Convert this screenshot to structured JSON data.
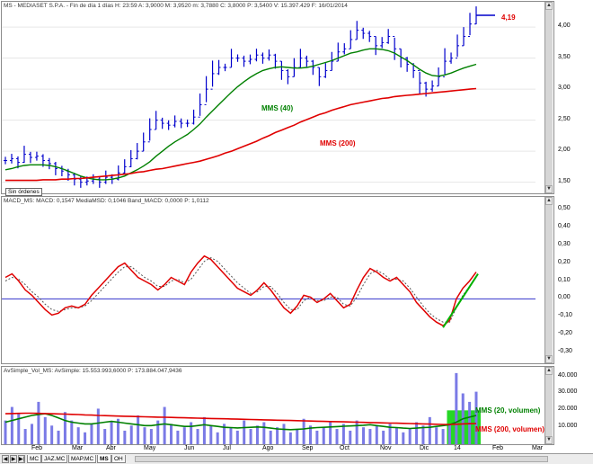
{
  "price_panel": {
    "header": "MS - MEDIASET S.P.A. - Fin de día 1 días H: 23:59 A: 3,9000 M: 3,9520 m: 3,7880 C: 3,8000 P: 3,5400 V: 15.397.429 F: 16/01/2014",
    "last_value_label": "4,19",
    "mms40_label": "MMS (40)",
    "mms200_label": "MMS (200)",
    "orders_button": "Sin órdenes",
    "y_ticks": [
      "4,00",
      "3,50",
      "3,00",
      "2,50",
      "2,00",
      "1,50"
    ],
    "colors": {
      "price": "#0000cc",
      "mms40": "#008000",
      "mms200": "#e00000"
    }
  },
  "macd_panel": {
    "header": "MACD_MS: MACD: 0,1547 MediaMSD: 0,1046 Band_MACD: 0,0000 P: 1,0112",
    "y_ticks": [
      "0,50",
      "0,40",
      "0,30",
      "0,20",
      "0,10",
      "0,00",
      "-0,10",
      "-0,20",
      "-0,30"
    ]
  },
  "volume_panel": {
    "header": "AvSimple_Vol_MS: AvSimple: 15.553.993,6000 P: 173.884.047,9436",
    "mms20_label": "MMS (20, volumen)",
    "mms200_label": "MMS (200, volumen)",
    "y_ticks": [
      "40.000",
      "30.000",
      "20.000",
      "10.000"
    ]
  },
  "x_axis": {
    "months": [
      "Feb",
      "Mar",
      "Abr",
      "May",
      "Jun",
      "Jul",
      "Ago",
      "Sep",
      "Oct",
      "Nov",
      "Dic",
      "14",
      "Feb",
      "Mar"
    ]
  },
  "tabs": [
    "MC",
    "JAZ.MC",
    "MAP.MC",
    "MS",
    "OH"
  ],
  "chart_data": [
    {
      "type": "line",
      "title": "MS - MEDIASET S.P.A.",
      "ylim": [
        1.35,
        4.35
      ],
      "series": [
        {
          "name": "price",
          "values": [
            1.85,
            1.88,
            1.82,
            1.95,
            1.9,
            1.92,
            1.85,
            1.8,
            1.72,
            1.68,
            1.62,
            1.55,
            1.5,
            1.52,
            1.55,
            1.5,
            1.58,
            1.55,
            1.65,
            1.75,
            1.88,
            2.0,
            2.15,
            2.35,
            2.5,
            2.45,
            2.42,
            2.48,
            2.45,
            2.45,
            2.55,
            2.75,
            3.0,
            3.25,
            3.35,
            3.35,
            3.5,
            3.5,
            3.45,
            3.48,
            3.55,
            3.5,
            3.55,
            3.45,
            3.3,
            3.2,
            3.35,
            3.5,
            3.45,
            3.35,
            3.2,
            3.3,
            3.45,
            3.6,
            3.65,
            3.8,
            3.95,
            3.9,
            3.85,
            3.7,
            3.75,
            3.85,
            3.65,
            3.5,
            3.4,
            3.3,
            3.1,
            3.0,
            3.05,
            3.2,
            3.45,
            3.5,
            3.7,
            3.85,
            4.05,
            4.19
          ]
        },
        {
          "name": "MMS (40)",
          "values": [
            1.7,
            1.72,
            1.75,
            1.77,
            1.78,
            1.78,
            1.78,
            1.77,
            1.75,
            1.72,
            1.68,
            1.64,
            1.6,
            1.57,
            1.55,
            1.54,
            1.54,
            1.55,
            1.57,
            1.6,
            1.65,
            1.7,
            1.76,
            1.83,
            1.92,
            2.0,
            2.08,
            2.15,
            2.21,
            2.27,
            2.35,
            2.44,
            2.55,
            2.65,
            2.75,
            2.85,
            2.95,
            3.04,
            3.12,
            3.19,
            3.25,
            3.3,
            3.33,
            3.35,
            3.36,
            3.35,
            3.34,
            3.34,
            3.35,
            3.37,
            3.4,
            3.43,
            3.46,
            3.5,
            3.54,
            3.58,
            3.6,
            3.63,
            3.65,
            3.65,
            3.64,
            3.62,
            3.58,
            3.52,
            3.46,
            3.39,
            3.32,
            3.26,
            3.22,
            3.21,
            3.23,
            3.26,
            3.3,
            3.34,
            3.37,
            3.4
          ]
        },
        {
          "name": "MMS (200)",
          "values": [
            1.53,
            1.53,
            1.53,
            1.53,
            1.53,
            1.53,
            1.54,
            1.54,
            1.54,
            1.55,
            1.55,
            1.56,
            1.56,
            1.57,
            1.58,
            1.59,
            1.6,
            1.61,
            1.62,
            1.63,
            1.64,
            1.66,
            1.67,
            1.69,
            1.71,
            1.72,
            1.74,
            1.76,
            1.78,
            1.8,
            1.82,
            1.84,
            1.87,
            1.9,
            1.93,
            1.97,
            2.0,
            2.04,
            2.08,
            2.12,
            2.16,
            2.21,
            2.25,
            2.3,
            2.34,
            2.38,
            2.42,
            2.47,
            2.51,
            2.55,
            2.59,
            2.62,
            2.66,
            2.69,
            2.72,
            2.75,
            2.77,
            2.79,
            2.81,
            2.83,
            2.85,
            2.86,
            2.88,
            2.89,
            2.9,
            2.91,
            2.92,
            2.93,
            2.94,
            2.95,
            2.96,
            2.97,
            2.98,
            2.99,
            3.0,
            3.01
          ]
        }
      ]
    },
    {
      "type": "line",
      "title": "MACD_MS",
      "ylim": [
        -0.35,
        0.55
      ],
      "series": [
        {
          "name": "MACD",
          "values": [
            0.12,
            0.14,
            0.1,
            0.05,
            0.02,
            -0.02,
            -0.06,
            -0.09,
            -0.08,
            -0.05,
            -0.04,
            -0.05,
            -0.03,
            0.02,
            0.06,
            0.1,
            0.14,
            0.18,
            0.2,
            0.16,
            0.12,
            0.1,
            0.08,
            0.05,
            0.08,
            0.12,
            0.1,
            0.08,
            0.15,
            0.2,
            0.24,
            0.22,
            0.18,
            0.14,
            0.1,
            0.06,
            0.04,
            0.02,
            0.05,
            0.09,
            0.05,
            0.0,
            -0.05,
            -0.08,
            -0.04,
            0.02,
            0.01,
            -0.02,
            0.0,
            0.03,
            -0.01,
            -0.05,
            -0.03,
            0.05,
            0.12,
            0.17,
            0.15,
            0.12,
            0.1,
            0.12,
            0.08,
            0.04,
            -0.02,
            -0.06,
            -0.1,
            -0.13,
            -0.15,
            -0.12,
            0.0,
            0.06,
            0.1,
            0.15
          ]
        },
        {
          "name": "MediaMSD",
          "values": [
            0.1,
            0.12,
            0.11,
            0.08,
            0.04,
            0.01,
            -0.03,
            -0.06,
            -0.07,
            -0.06,
            -0.05,
            -0.05,
            -0.04,
            -0.01,
            0.03,
            0.07,
            0.11,
            0.15,
            0.18,
            0.18,
            0.15,
            0.12,
            0.1,
            0.07,
            0.07,
            0.1,
            0.11,
            0.09,
            0.11,
            0.16,
            0.21,
            0.23,
            0.21,
            0.17,
            0.13,
            0.09,
            0.06,
            0.03,
            0.04,
            0.07,
            0.07,
            0.03,
            -0.02,
            -0.06,
            -0.06,
            -0.01,
            0.01,
            -0.01,
            -0.01,
            0.01,
            0.01,
            -0.03,
            -0.04,
            0.01,
            0.08,
            0.14,
            0.16,
            0.14,
            0.11,
            0.11,
            0.1,
            0.06,
            0.01,
            -0.04,
            -0.08,
            -0.11,
            -0.13,
            -0.13,
            -0.05,
            0.02,
            0.07,
            0.12
          ]
        }
      ]
    },
    {
      "type": "bar",
      "title": "AvSimple_Vol_MS",
      "ylim": [
        0,
        43000
      ],
      "series": [
        {
          "name": "volumen",
          "values": [
            14000,
            22000,
            18000,
            9000,
            12000,
            25000,
            16000,
            11000,
            8000,
            19000,
            14000,
            10000,
            7000,
            12000,
            21000,
            9000,
            13000,
            15000,
            8000,
            11000,
            17000,
            10000,
            9000,
            14000,
            22000,
            12000,
            8000,
            10000,
            13000,
            9000,
            16000,
            11000,
            7000,
            12000,
            10000,
            8000,
            14000,
            9000,
            11000,
            13000,
            8000,
            10000,
            12000,
            7000,
            9000,
            15000,
            11000,
            8000,
            10000,
            13000,
            9000,
            12000,
            8000,
            14000,
            10000,
            9000,
            11000,
            8000,
            12000,
            10000,
            7000,
            9000,
            13000,
            11000,
            16000,
            10000,
            9000,
            12000,
            42000,
            30000,
            25000,
            31000
          ]
        },
        {
          "name": "MMS (20, volumen)",
          "values": [
            13000,
            14000,
            15000,
            16000,
            17000,
            17500,
            18000,
            17000,
            15500,
            14000,
            13000,
            12500,
            12000,
            12000,
            12500,
            13000,
            13500,
            13000,
            12500,
            12000,
            11500,
            11000,
            11000,
            11500,
            12000,
            11500,
            11000,
            10500,
            10500,
            11000,
            11500,
            11000,
            10500,
            10000,
            9800,
            9600,
            9800,
            10000,
            10200,
            10000,
            9500,
            9000,
            8800,
            8600,
            8800,
            9000,
            9500,
            9800,
            10000,
            10200,
            10400,
            10600,
            10800,
            11000,
            11200,
            11500,
            11000,
            10500,
            10000,
            9800,
            9500,
            9300,
            9500,
            9800,
            10000,
            10500,
            11000,
            11500,
            13000,
            15000,
            16000,
            17000
          ]
        },
        {
          "name": "MMS (200, volumen)",
          "values": [
            18000,
            18100,
            18200,
            18300,
            18300,
            18200,
            18100,
            18000,
            17900,
            17800,
            17600,
            17500,
            17300,
            17200,
            17000,
            16900,
            16800,
            16600,
            16500,
            16400,
            16300,
            16200,
            16100,
            16000,
            15900,
            15800,
            15700,
            15600,
            15500,
            15400,
            15300,
            15200,
            15100,
            15000,
            14900,
            14800,
            14700,
            14600,
            14500,
            14400,
            14300,
            14200,
            14100,
            14000,
            13900,
            13800,
            13700,
            13600,
            13500,
            13400,
            13300,
            13200,
            13100,
            13000,
            12900,
            12800,
            12700,
            12600,
            12500,
            12400,
            12300,
            12200,
            12100,
            12000,
            11900,
            11800,
            11700,
            11700,
            11800,
            12000,
            12100,
            12200
          ]
        }
      ]
    }
  ]
}
